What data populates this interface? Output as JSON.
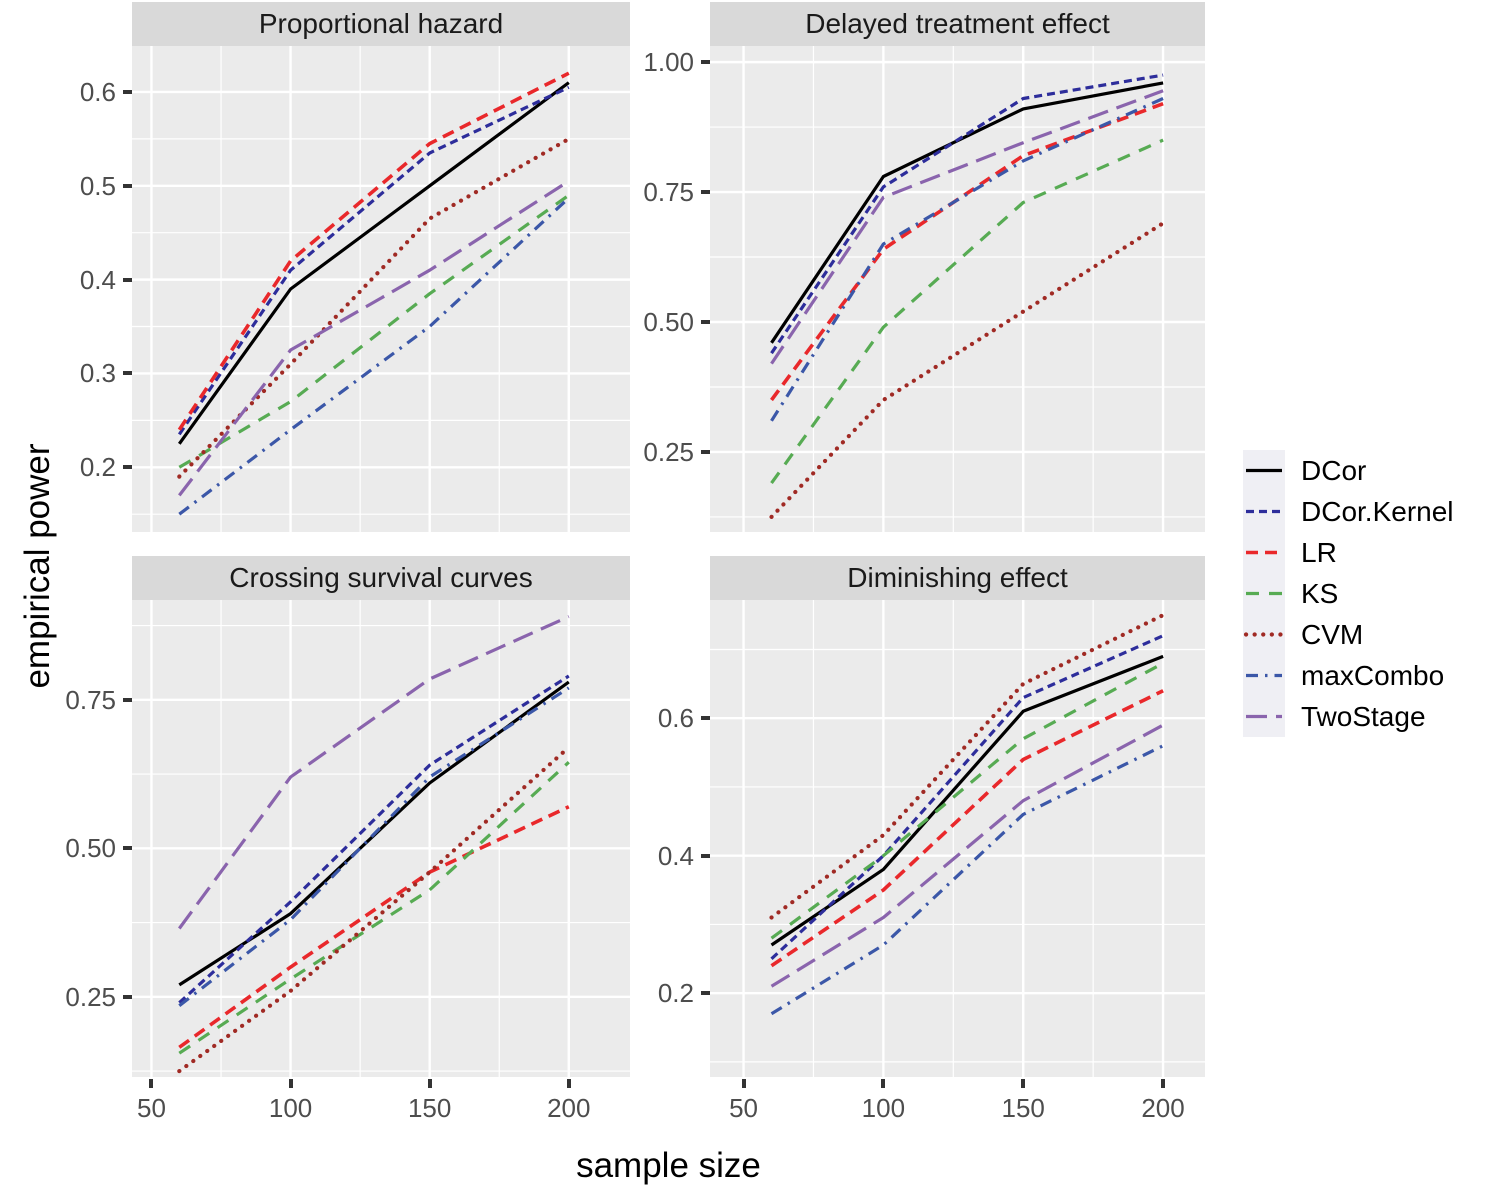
{
  "figure": {
    "y_axis_title": "empirical power",
    "x_axis_title": "sample size",
    "legend_position": "right",
    "legend": [
      {
        "label": "DCor",
        "color": "#000000",
        "linetype": "solid"
      },
      {
        "label": "DCor.Kernel",
        "color": "#2D2D9B",
        "linetype": "shortdash"
      },
      {
        "label": "LR",
        "color": "#E9282B",
        "linetype": "dashed"
      },
      {
        "label": "KS",
        "color": "#57AB53",
        "linetype": "widedash"
      },
      {
        "label": "CVM",
        "color": "#A02A24",
        "linetype": "dotted"
      },
      {
        "label": "maxCombo",
        "color": "#3B57A8",
        "linetype": "dotdash"
      },
      {
        "label": "TwoStage",
        "color": "#8A64AD",
        "linetype": "longdash"
      }
    ],
    "colors": {
      "background": "#FFFFFF",
      "panel_bg": "#EBEBEB",
      "strip_bg": "#D9D9D9",
      "grid": "#FFFFFF",
      "tick_text": "#4D4D4D",
      "strip_text": "#1A1A1A",
      "tick_mark": "#333333",
      "legend_key_bg": "#EFEFF4"
    }
  },
  "chart_data": [
    {
      "type": "line",
      "title": "Proportional hazard",
      "xlabel": "sample size",
      "ylabel": "empirical power",
      "x": [
        60,
        100,
        150,
        200
      ],
      "xticks": [
        50,
        100,
        150,
        200
      ],
      "xtick_labels": [
        "50",
        "100",
        "150",
        "200"
      ],
      "xlim": [
        43,
        222
      ],
      "yticks": [
        0.2,
        0.3,
        0.4,
        0.5,
        0.6
      ],
      "ytick_labels": [
        "0.2",
        "0.3",
        "0.4",
        "0.5",
        "0.6"
      ],
      "ylim": [
        0.131,
        0.649
      ],
      "grid": true,
      "series": [
        {
          "name": "DCor",
          "values": [
            0.225,
            0.39,
            0.5,
            0.61
          ]
        },
        {
          "name": "DCor.Kernel",
          "values": [
            0.235,
            0.41,
            0.535,
            0.605
          ]
        },
        {
          "name": "LR",
          "values": [
            0.24,
            0.42,
            0.545,
            0.62
          ]
        },
        {
          "name": "KS",
          "values": [
            0.2,
            0.27,
            0.385,
            0.49
          ]
        },
        {
          "name": "CVM",
          "values": [
            0.19,
            0.31,
            0.465,
            0.55
          ]
        },
        {
          "name": "maxCombo",
          "values": [
            0.15,
            0.24,
            0.35,
            0.487
          ]
        },
        {
          "name": "TwoStage",
          "values": [
            0.17,
            0.325,
            0.41,
            0.505
          ]
        }
      ]
    },
    {
      "type": "line",
      "title": "Delayed treatment effect",
      "xlabel": "sample size",
      "ylabel": "empirical power",
      "x": [
        60,
        100,
        150,
        200
      ],
      "xticks": [
        50,
        100,
        150,
        200
      ],
      "xtick_labels": [
        "50",
        "100",
        "150",
        "200"
      ],
      "xlim": [
        38,
        215
      ],
      "yticks": [
        0.25,
        0.5,
        0.75,
        1.0
      ],
      "ytick_labels": [
        "0.25",
        "0.50",
        "0.75",
        "1.00"
      ],
      "ylim": [
        0.096,
        1.031
      ],
      "grid": true,
      "series": [
        {
          "name": "DCor",
          "values": [
            0.46,
            0.78,
            0.91,
            0.96
          ]
        },
        {
          "name": "DCor.Kernel",
          "values": [
            0.44,
            0.76,
            0.93,
            0.975
          ]
        },
        {
          "name": "LR",
          "values": [
            0.35,
            0.64,
            0.82,
            0.92
          ]
        },
        {
          "name": "KS",
          "values": [
            0.19,
            0.49,
            0.73,
            0.85
          ]
        },
        {
          "name": "CVM",
          "values": [
            0.125,
            0.35,
            0.52,
            0.69
          ]
        },
        {
          "name": "maxCombo",
          "values": [
            0.31,
            0.65,
            0.81,
            0.93
          ]
        },
        {
          "name": "TwoStage",
          "values": [
            0.42,
            0.74,
            0.845,
            0.945
          ]
        }
      ]
    },
    {
      "type": "line",
      "title": "Crossing survival curves",
      "xlabel": "sample size",
      "ylabel": "empirical power",
      "x": [
        60,
        100,
        150,
        200
      ],
      "xticks": [
        50,
        100,
        150,
        200
      ],
      "xtick_labels": [
        "50",
        "100",
        "150",
        "200"
      ],
      "xlim": [
        43,
        222
      ],
      "yticks": [
        0.25,
        0.5,
        0.75
      ],
      "ytick_labels": [
        "0.25",
        "0.50",
        "0.75"
      ],
      "ylim": [
        0.115,
        0.918
      ],
      "grid": true,
      "series": [
        {
          "name": "DCor",
          "values": [
            0.27,
            0.39,
            0.61,
            0.78
          ]
        },
        {
          "name": "DCor.Kernel",
          "values": [
            0.24,
            0.41,
            0.64,
            0.79
          ]
        },
        {
          "name": "LR",
          "values": [
            0.165,
            0.3,
            0.46,
            0.57
          ]
        },
        {
          "name": "KS",
          "values": [
            0.155,
            0.28,
            0.43,
            0.645
          ]
        },
        {
          "name": "CVM",
          "values": [
            0.125,
            0.26,
            0.46,
            0.67
          ]
        },
        {
          "name": "maxCombo",
          "values": [
            0.235,
            0.38,
            0.62,
            0.77
          ]
        },
        {
          "name": "TwoStage",
          "values": [
            0.365,
            0.62,
            0.785,
            0.89
          ]
        }
      ]
    },
    {
      "type": "line",
      "title": "Diminishing effect",
      "xlabel": "sample size",
      "ylabel": "empirical power",
      "x": [
        60,
        100,
        150,
        200
      ],
      "xticks": [
        50,
        100,
        150,
        200
      ],
      "xtick_labels": [
        "50",
        "100",
        "150",
        "200"
      ],
      "xlim": [
        38,
        215
      ],
      "yticks": [
        0.2,
        0.4,
        0.6
      ],
      "ytick_labels": [
        "0.2",
        "0.4",
        "0.6"
      ],
      "ylim": [
        0.078,
        0.772
      ],
      "grid": true,
      "series": [
        {
          "name": "DCor",
          "values": [
            0.27,
            0.38,
            0.61,
            0.69
          ]
        },
        {
          "name": "DCor.Kernel",
          "values": [
            0.25,
            0.4,
            0.63,
            0.72
          ]
        },
        {
          "name": "LR",
          "values": [
            0.24,
            0.35,
            0.54,
            0.64
          ]
        },
        {
          "name": "KS",
          "values": [
            0.28,
            0.4,
            0.57,
            0.68
          ]
        },
        {
          "name": "CVM",
          "values": [
            0.31,
            0.43,
            0.65,
            0.75
          ]
        },
        {
          "name": "maxCombo",
          "values": [
            0.17,
            0.27,
            0.46,
            0.56
          ]
        },
        {
          "name": "TwoStage",
          "values": [
            0.21,
            0.31,
            0.48,
            0.59
          ]
        }
      ]
    }
  ]
}
